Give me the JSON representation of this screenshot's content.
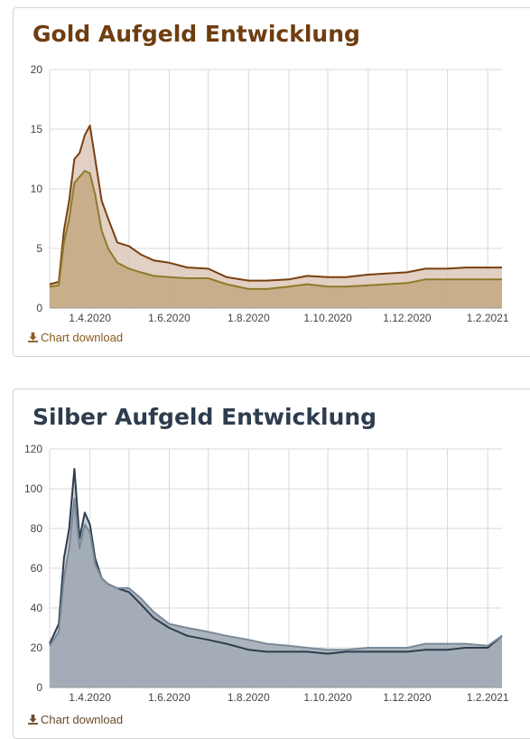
{
  "charts": {
    "gold": {
      "title": "Gold Aufgeld Entwicklung",
      "download_label": "Chart download"
    },
    "silver": {
      "title": "Silber Aufgeld Entwicklung",
      "download_label": "Chart download"
    }
  },
  "colors": {
    "gold_upper": "#7a3f0f",
    "gold_lower": "#8f7a2a",
    "gold_fill_upper": "#dcc8b8",
    "gold_fill_lower": "#c4a882",
    "silver_upper": "#2e3d4e",
    "silver_lower": "#7a8a99",
    "silver_fill_upper": "#c0c6cf",
    "silver_fill_lower": "#9ea7b2",
    "grid": "#d8d8d8"
  },
  "chart_data": [
    {
      "type": "area",
      "title": "Gold Aufgeld Entwicklung",
      "xlabel": "",
      "ylabel": "",
      "x_ticks": [
        "1.4.2020",
        "1.6.2020",
        "1.8.2020",
        "1.10.2020",
        "1.12.2020",
        "1.2.2021"
      ],
      "y_ticks": [
        0,
        5,
        10,
        15,
        20
      ],
      "ylim": [
        0,
        20
      ],
      "x": [
        "1.3.2020",
        "8.3.2020",
        "12.3.2020",
        "16.3.2020",
        "20.3.2020",
        "24.3.2020",
        "28.3.2020",
        "1.4.2020",
        "5.4.2020",
        "10.4.2020",
        "15.4.2020",
        "22.4.2020",
        "1.5.2020",
        "10.5.2020",
        "20.5.2020",
        "1.6.2020",
        "15.6.2020",
        "1.7.2020",
        "15.7.2020",
        "1.8.2020",
        "15.8.2020",
        "1.9.2020",
        "15.9.2020",
        "1.10.2020",
        "15.10.2020",
        "1.11.2020",
        "15.11.2020",
        "1.12.2020",
        "15.12.2020",
        "1.1.2021",
        "15.1.2021",
        "1.2.2021",
        "12.2.2021"
      ],
      "series": [
        {
          "values": [
            2.0,
            2.2,
            6.5,
            9.0,
            12.5,
            13.0,
            14.5,
            15.3,
            12.5,
            9.0,
            7.5,
            5.5,
            5.2,
            4.5,
            4.0,
            3.8,
            3.4,
            3.3,
            2.6,
            2.3,
            2.3,
            2.4,
            2.7,
            2.6,
            2.6,
            2.8,
            2.9,
            3.0,
            3.3,
            3.3,
            3.4,
            3.4,
            3.4
          ]
        },
        {
          "values": [
            1.8,
            1.9,
            5.5,
            7.5,
            10.5,
            11.0,
            11.5,
            11.3,
            9.5,
            6.5,
            5.0,
            3.8,
            3.3,
            3.0,
            2.7,
            2.6,
            2.5,
            2.5,
            2.0,
            1.6,
            1.6,
            1.8,
            2.0,
            1.8,
            1.8,
            1.9,
            2.0,
            2.1,
            2.4,
            2.4,
            2.4,
            2.4,
            2.4
          ]
        }
      ],
      "grid": true,
      "legend": "none"
    },
    {
      "type": "area",
      "title": "Silber Aufgeld Entwicklung",
      "xlabel": "",
      "ylabel": "",
      "x_ticks": [
        "1.4.2020",
        "1.6.2020",
        "1.8.2020",
        "1.10.2020",
        "1.12.2020",
        "1.2.2021"
      ],
      "y_ticks": [
        0,
        20,
        40,
        60,
        80,
        100,
        120
      ],
      "ylim": [
        0,
        120
      ],
      "x": [
        "1.3.2020",
        "8.3.2020",
        "12.3.2020",
        "16.3.2020",
        "20.3.2020",
        "24.3.2020",
        "28.3.2020",
        "1.4.2020",
        "5.4.2020",
        "10.4.2020",
        "15.4.2020",
        "22.4.2020",
        "1.5.2020",
        "10.5.2020",
        "20.5.2020",
        "1.6.2020",
        "15.6.2020",
        "1.7.2020",
        "15.7.2020",
        "1.8.2020",
        "15.8.2020",
        "1.9.2020",
        "15.9.2020",
        "1.10.2020",
        "15.10.2020",
        "1.11.2020",
        "15.11.2020",
        "1.12.2020",
        "15.12.2020",
        "1.1.2021",
        "15.1.2021",
        "1.2.2021",
        "12.2.2021"
      ],
      "series": [
        {
          "values": [
            22,
            32,
            65,
            80,
            110,
            75,
            88,
            82,
            65,
            55,
            52,
            50,
            48,
            42,
            35,
            30,
            26,
            24,
            22,
            19,
            18,
            18,
            18,
            17,
            18,
            18,
            18,
            18,
            19,
            19,
            20,
            20,
            26
          ]
        },
        {
          "values": [
            21,
            28,
            55,
            70,
            95,
            70,
            82,
            78,
            62,
            55,
            52,
            50,
            50,
            45,
            38,
            32,
            30,
            28,
            26,
            24,
            22,
            21,
            20,
            19,
            19,
            20,
            20,
            20,
            22,
            22,
            22,
            21,
            26
          ]
        }
      ],
      "grid": true,
      "legend": "none"
    }
  ]
}
